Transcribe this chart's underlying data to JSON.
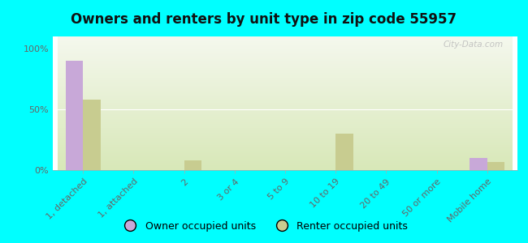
{
  "title": "Owners and renters by unit type in zip code 55957",
  "categories": [
    "1, detached",
    "1, attached",
    "2",
    "3 or 4",
    "5 to 9",
    "10 to 19",
    "20 to 49",
    "50 or more",
    "Mobile home"
  ],
  "owner_values": [
    90,
    0,
    0,
    0,
    0,
    0,
    0,
    0,
    10
  ],
  "renter_values": [
    58,
    0,
    8,
    0,
    0,
    30,
    0,
    0,
    7
  ],
  "owner_color": "#c8a8d8",
  "renter_color": "#c8cc90",
  "background_color": "#00ffff",
  "grad_top": "#f5f8ee",
  "grad_bottom": "#d8e8b8",
  "yticks": [
    0,
    50,
    100
  ],
  "ytick_labels": [
    "0%",
    "50%",
    "100%"
  ],
  "ylim": [
    0,
    110
  ],
  "bar_width": 0.35,
  "watermark": "City-Data.com",
  "legend_owner": "Owner occupied units",
  "legend_renter": "Renter occupied units",
  "title_fontsize": 12,
  "tick_fontsize": 8,
  "ytick_fontsize": 8
}
